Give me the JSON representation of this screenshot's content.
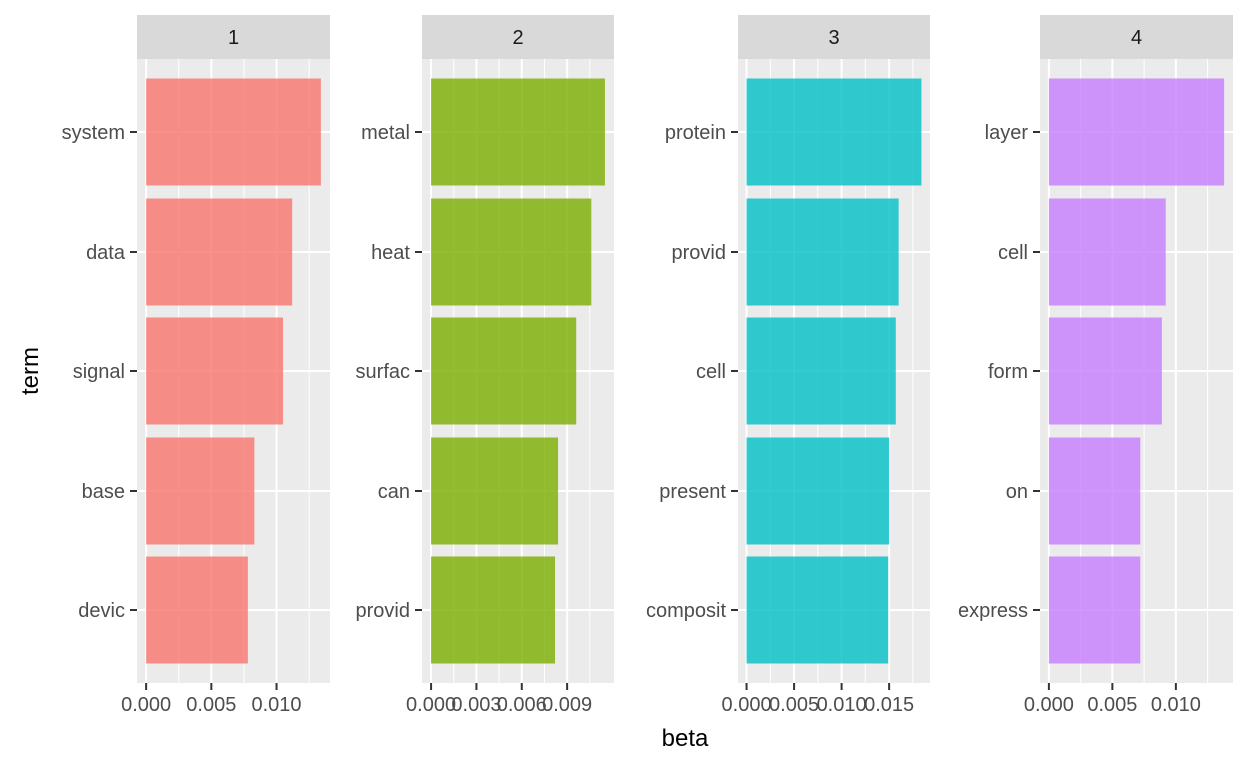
{
  "chart_data": {
    "type": "bar",
    "orientation": "horizontal",
    "xlabel": "beta",
    "ylabel": "term",
    "grid": true,
    "legend": "none",
    "panels": [
      {
        "label": "1",
        "color": "#F8766D",
        "terms": [
          "system",
          "data",
          "signal",
          "base",
          "devic"
        ],
        "values": [
          0.0134,
          0.0112,
          0.0105,
          0.0083,
          0.0078
        ],
        "xlim": [
          -0.0007,
          0.0141
        ],
        "ticks": [
          0,
          0.005,
          0.01
        ],
        "tick_labels": [
          "0.000",
          "0.005",
          "0.010"
        ]
      },
      {
        "label": "2",
        "color": "#7CAE00",
        "terms": [
          "metal",
          "heat",
          "surfac",
          "can",
          "provid"
        ],
        "values": [
          0.0115,
          0.0106,
          0.0096,
          0.0084,
          0.0082
        ],
        "xlim": [
          -0.0006,
          0.0121
        ],
        "ticks": [
          0,
          0.003,
          0.006,
          0.009
        ],
        "tick_labels": [
          "0.000",
          "0.003",
          "0.006",
          "0.009"
        ]
      },
      {
        "label": "3",
        "color": "#00BFC4",
        "terms": [
          "protein",
          "provid",
          "cell",
          "present",
          "composit"
        ],
        "values": [
          0.0184,
          0.016,
          0.0157,
          0.015,
          0.0149
        ],
        "xlim": [
          -0.0009,
          0.0193
        ],
        "ticks": [
          0,
          0.005,
          0.01,
          0.015
        ],
        "tick_labels": [
          "0.000",
          "0.005",
          "0.010",
          "0.015"
        ]
      },
      {
        "label": "4",
        "color": "#C77CFF",
        "terms": [
          "layer",
          "cell",
          "form",
          "on",
          "express"
        ],
        "values": [
          0.0138,
          0.0092,
          0.0089,
          0.0072,
          0.0072
        ],
        "xlim": [
          -0.0007,
          0.0145
        ],
        "ticks": [
          0,
          0.005,
          0.01
        ],
        "tick_labels": [
          "0.000",
          "0.005",
          "0.010"
        ]
      }
    ]
  }
}
